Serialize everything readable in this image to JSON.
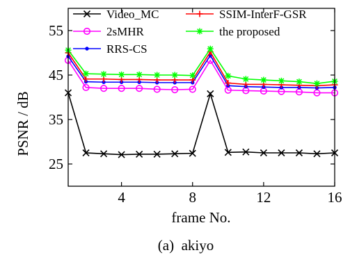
{
  "chart_data": {
    "type": "line",
    "xlabel": "frame No.",
    "ylabel": "PSNR / dB",
    "caption": "(a)  akiyo",
    "xlim": [
      1,
      16
    ],
    "ylim": [
      20,
      60
    ],
    "xticks": [
      4,
      8,
      12,
      16
    ],
    "yticks": [
      25,
      35,
      45,
      55
    ],
    "grid": false,
    "legend_position": "top",
    "x": [
      1,
      2,
      3,
      4,
      5,
      6,
      7,
      8,
      9,
      10,
      11,
      12,
      13,
      14,
      15,
      16
    ],
    "series": [
      {
        "name": "Video_MC",
        "color": "#000000",
        "marker": "x",
        "values": [
          41,
          27.5,
          27.3,
          27.1,
          27.2,
          27.2,
          27.3,
          27.4,
          40.8,
          27.6,
          27.7,
          27.5,
          27.5,
          27.5,
          27.3,
          27.5
        ]
      },
      {
        "name": "2sMHR",
        "color": "#ff00ff",
        "marker": "circle",
        "values": [
          48.3,
          42.2,
          42,
          42,
          42,
          41.8,
          41.7,
          41.8,
          48.3,
          41.6,
          41.5,
          41.4,
          41.3,
          41.2,
          41,
          41
        ]
      },
      {
        "name": "RRS-CS",
        "color": "#0000ff",
        "marker": "dot",
        "values": [
          49.2,
          43.5,
          43.4,
          43.4,
          43.4,
          43.3,
          43.3,
          43.3,
          49.4,
          42.6,
          42.4,
          42.3,
          42.2,
          42.2,
          42.1,
          42.2
        ]
      },
      {
        "name": "SSIM-InterF-GSR",
        "color": "#ff0000",
        "marker": "plus",
        "values": [
          50,
          44.1,
          44.1,
          44,
          44,
          43.9,
          43.9,
          43.9,
          50.2,
          43.2,
          42.9,
          42.9,
          42.8,
          42.7,
          42.6,
          42.8
        ]
      },
      {
        "name": "the proposed",
        "color": "#00ff00",
        "marker": "star",
        "values": [
          50.6,
          45.3,
          45.2,
          45.1,
          45.1,
          45,
          45,
          44.9,
          50.9,
          44.8,
          44.1,
          43.9,
          43.7,
          43.5,
          43.1,
          43.6
        ]
      }
    ]
  }
}
